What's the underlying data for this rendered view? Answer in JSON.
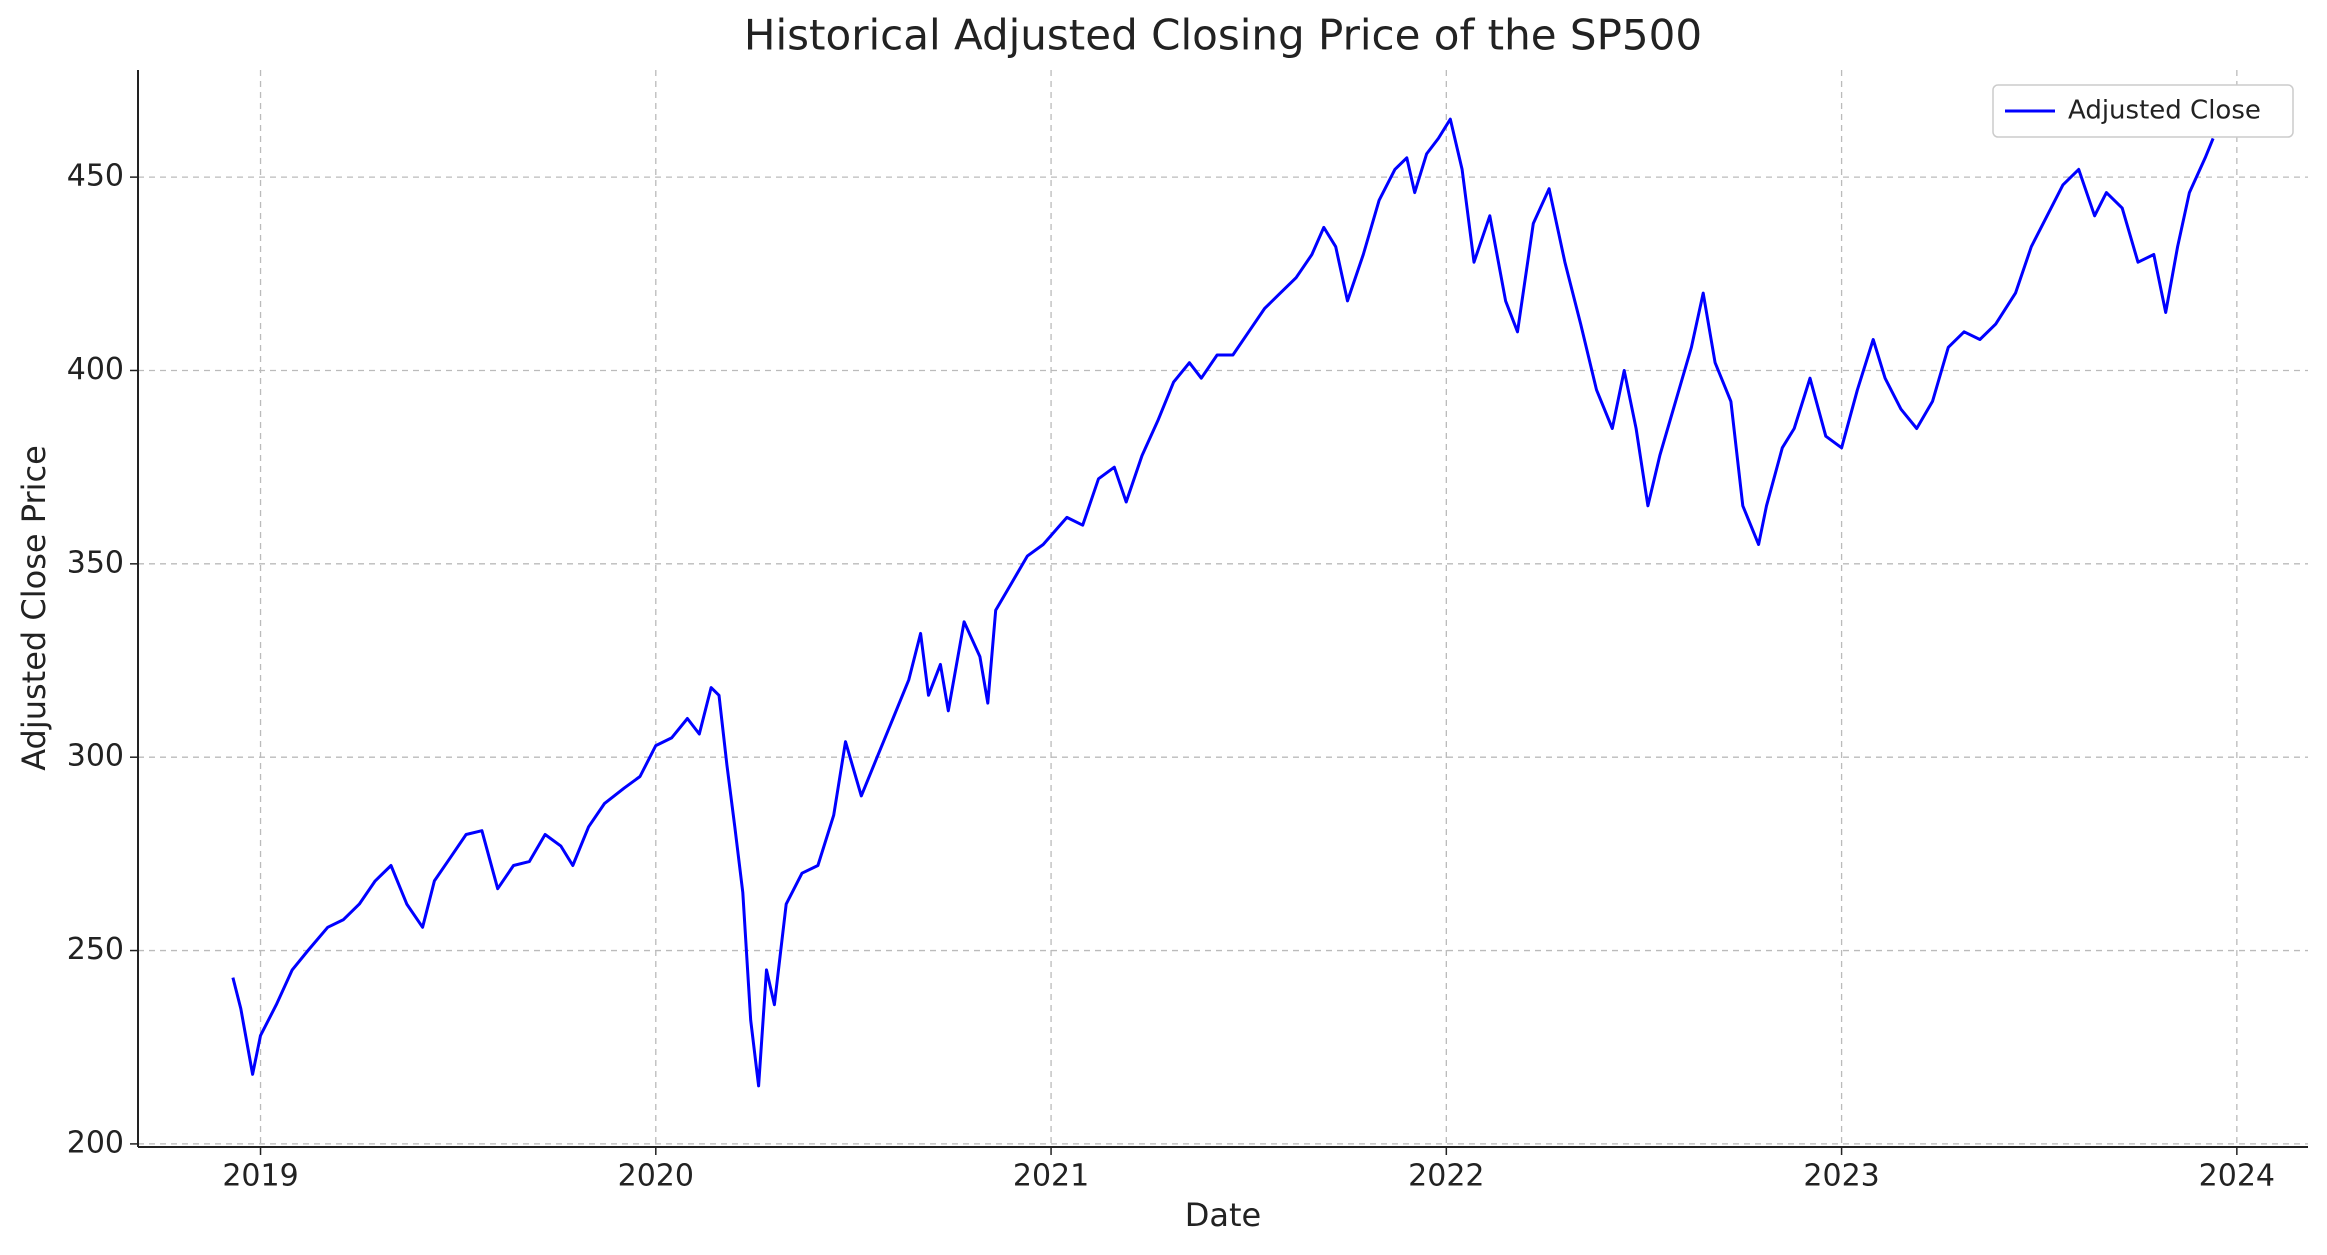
{
  "chart_data": {
    "type": "line",
    "title": "Historical Adjusted Closing Price of the SP500",
    "x_label": "Date",
    "y_label": "Adjusted Close Price",
    "x": [
      2018.93,
      2018.95,
      2018.98,
      2019.0,
      2019.04,
      2019.08,
      2019.12,
      2019.17,
      2019.21,
      2019.25,
      2019.29,
      2019.33,
      2019.37,
      2019.41,
      2019.44,
      2019.48,
      2019.52,
      2019.56,
      2019.6,
      2019.64,
      2019.68,
      2019.72,
      2019.76,
      2019.79,
      2019.83,
      2019.87,
      2019.92,
      2019.96,
      2020.0,
      2020.04,
      2020.08,
      2020.11,
      2020.14,
      2020.16,
      2020.18,
      2020.2,
      2020.22,
      2020.24,
      2020.26,
      2020.28,
      2020.3,
      2020.33,
      2020.37,
      2020.41,
      2020.45,
      2020.48,
      2020.52,
      2020.56,
      2020.6,
      2020.64,
      2020.67,
      2020.69,
      2020.72,
      2020.74,
      2020.78,
      2020.82,
      2020.84,
      2020.86,
      2020.9,
      2020.94,
      2020.98,
      2021.04,
      2021.08,
      2021.12,
      2021.16,
      2021.19,
      2021.23,
      2021.27,
      2021.31,
      2021.35,
      2021.38,
      2021.42,
      2021.46,
      2021.5,
      2021.54,
      2021.58,
      2021.62,
      2021.66,
      2021.69,
      2021.72,
      2021.75,
      2021.79,
      2021.83,
      2021.87,
      2021.9,
      2021.92,
      2021.95,
      2021.98,
      2022.01,
      2022.04,
      2022.07,
      2022.11,
      2022.15,
      2022.18,
      2022.22,
      2022.26,
      2022.3,
      2022.34,
      2022.38,
      2022.42,
      2022.45,
      2022.48,
      2022.51,
      2022.54,
      2022.58,
      2022.62,
      2022.65,
      2022.68,
      2022.72,
      2022.75,
      2022.79,
      2022.81,
      2022.85,
      2022.88,
      2022.92,
      2022.96,
      2023.0,
      2023.04,
      2023.08,
      2023.11,
      2023.15,
      2023.19,
      2023.23,
      2023.27,
      2023.31,
      2023.35,
      2023.39,
      2023.44,
      2023.48,
      2023.52,
      2023.56,
      2023.6,
      2023.64,
      2023.67,
      2023.71,
      2023.75,
      2023.79,
      2023.82,
      2023.85,
      2023.88,
      2023.92,
      2023.94
    ],
    "series": [
      {
        "name": "Adjusted Close",
        "color": "#0000ff",
        "values": [
          243,
          235,
          218,
          228,
          236,
          245,
          250,
          256,
          258,
          262,
          268,
          272,
          262,
          256,
          268,
          274,
          280,
          281,
          266,
          272,
          273,
          280,
          277,
          272,
          282,
          288,
          292,
          295,
          303,
          305,
          310,
          306,
          318,
          316,
          298,
          282,
          265,
          232,
          215,
          245,
          236,
          262,
          270,
          272,
          285,
          304,
          290,
          300,
          310,
          320,
          332,
          316,
          324,
          312,
          335,
          326,
          314,
          338,
          345,
          352,
          355,
          362,
          360,
          372,
          375,
          366,
          378,
          387,
          397,
          402,
          398,
          404,
          404,
          410,
          416,
          420,
          424,
          430,
          437,
          432,
          418,
          430,
          444,
          452,
          455,
          446,
          456,
          460,
          465,
          452,
          428,
          440,
          418,
          410,
          438,
          447,
          428,
          412,
          395,
          385,
          400,
          385,
          365,
          378,
          392,
          406,
          420,
          402,
          392,
          365,
          355,
          365,
          380,
          385,
          398,
          383,
          380,
          395,
          408,
          398,
          390,
          385,
          392,
          406,
          410,
          408,
          412,
          420,
          432,
          440,
          448,
          452,
          440,
          446,
          442,
          428,
          430,
          415,
          432,
          446,
          455,
          460
        ]
      }
    ],
    "xlim": [
      2018.69,
      2024.18
    ],
    "xticks": [
      2019,
      2020,
      2021,
      2022,
      2023,
      2024
    ],
    "ylim": [
      199.2,
      477.7
    ],
    "yticks": [
      200,
      250,
      300,
      350,
      400,
      450
    ],
    "grid": true,
    "legend": "upper right"
  }
}
